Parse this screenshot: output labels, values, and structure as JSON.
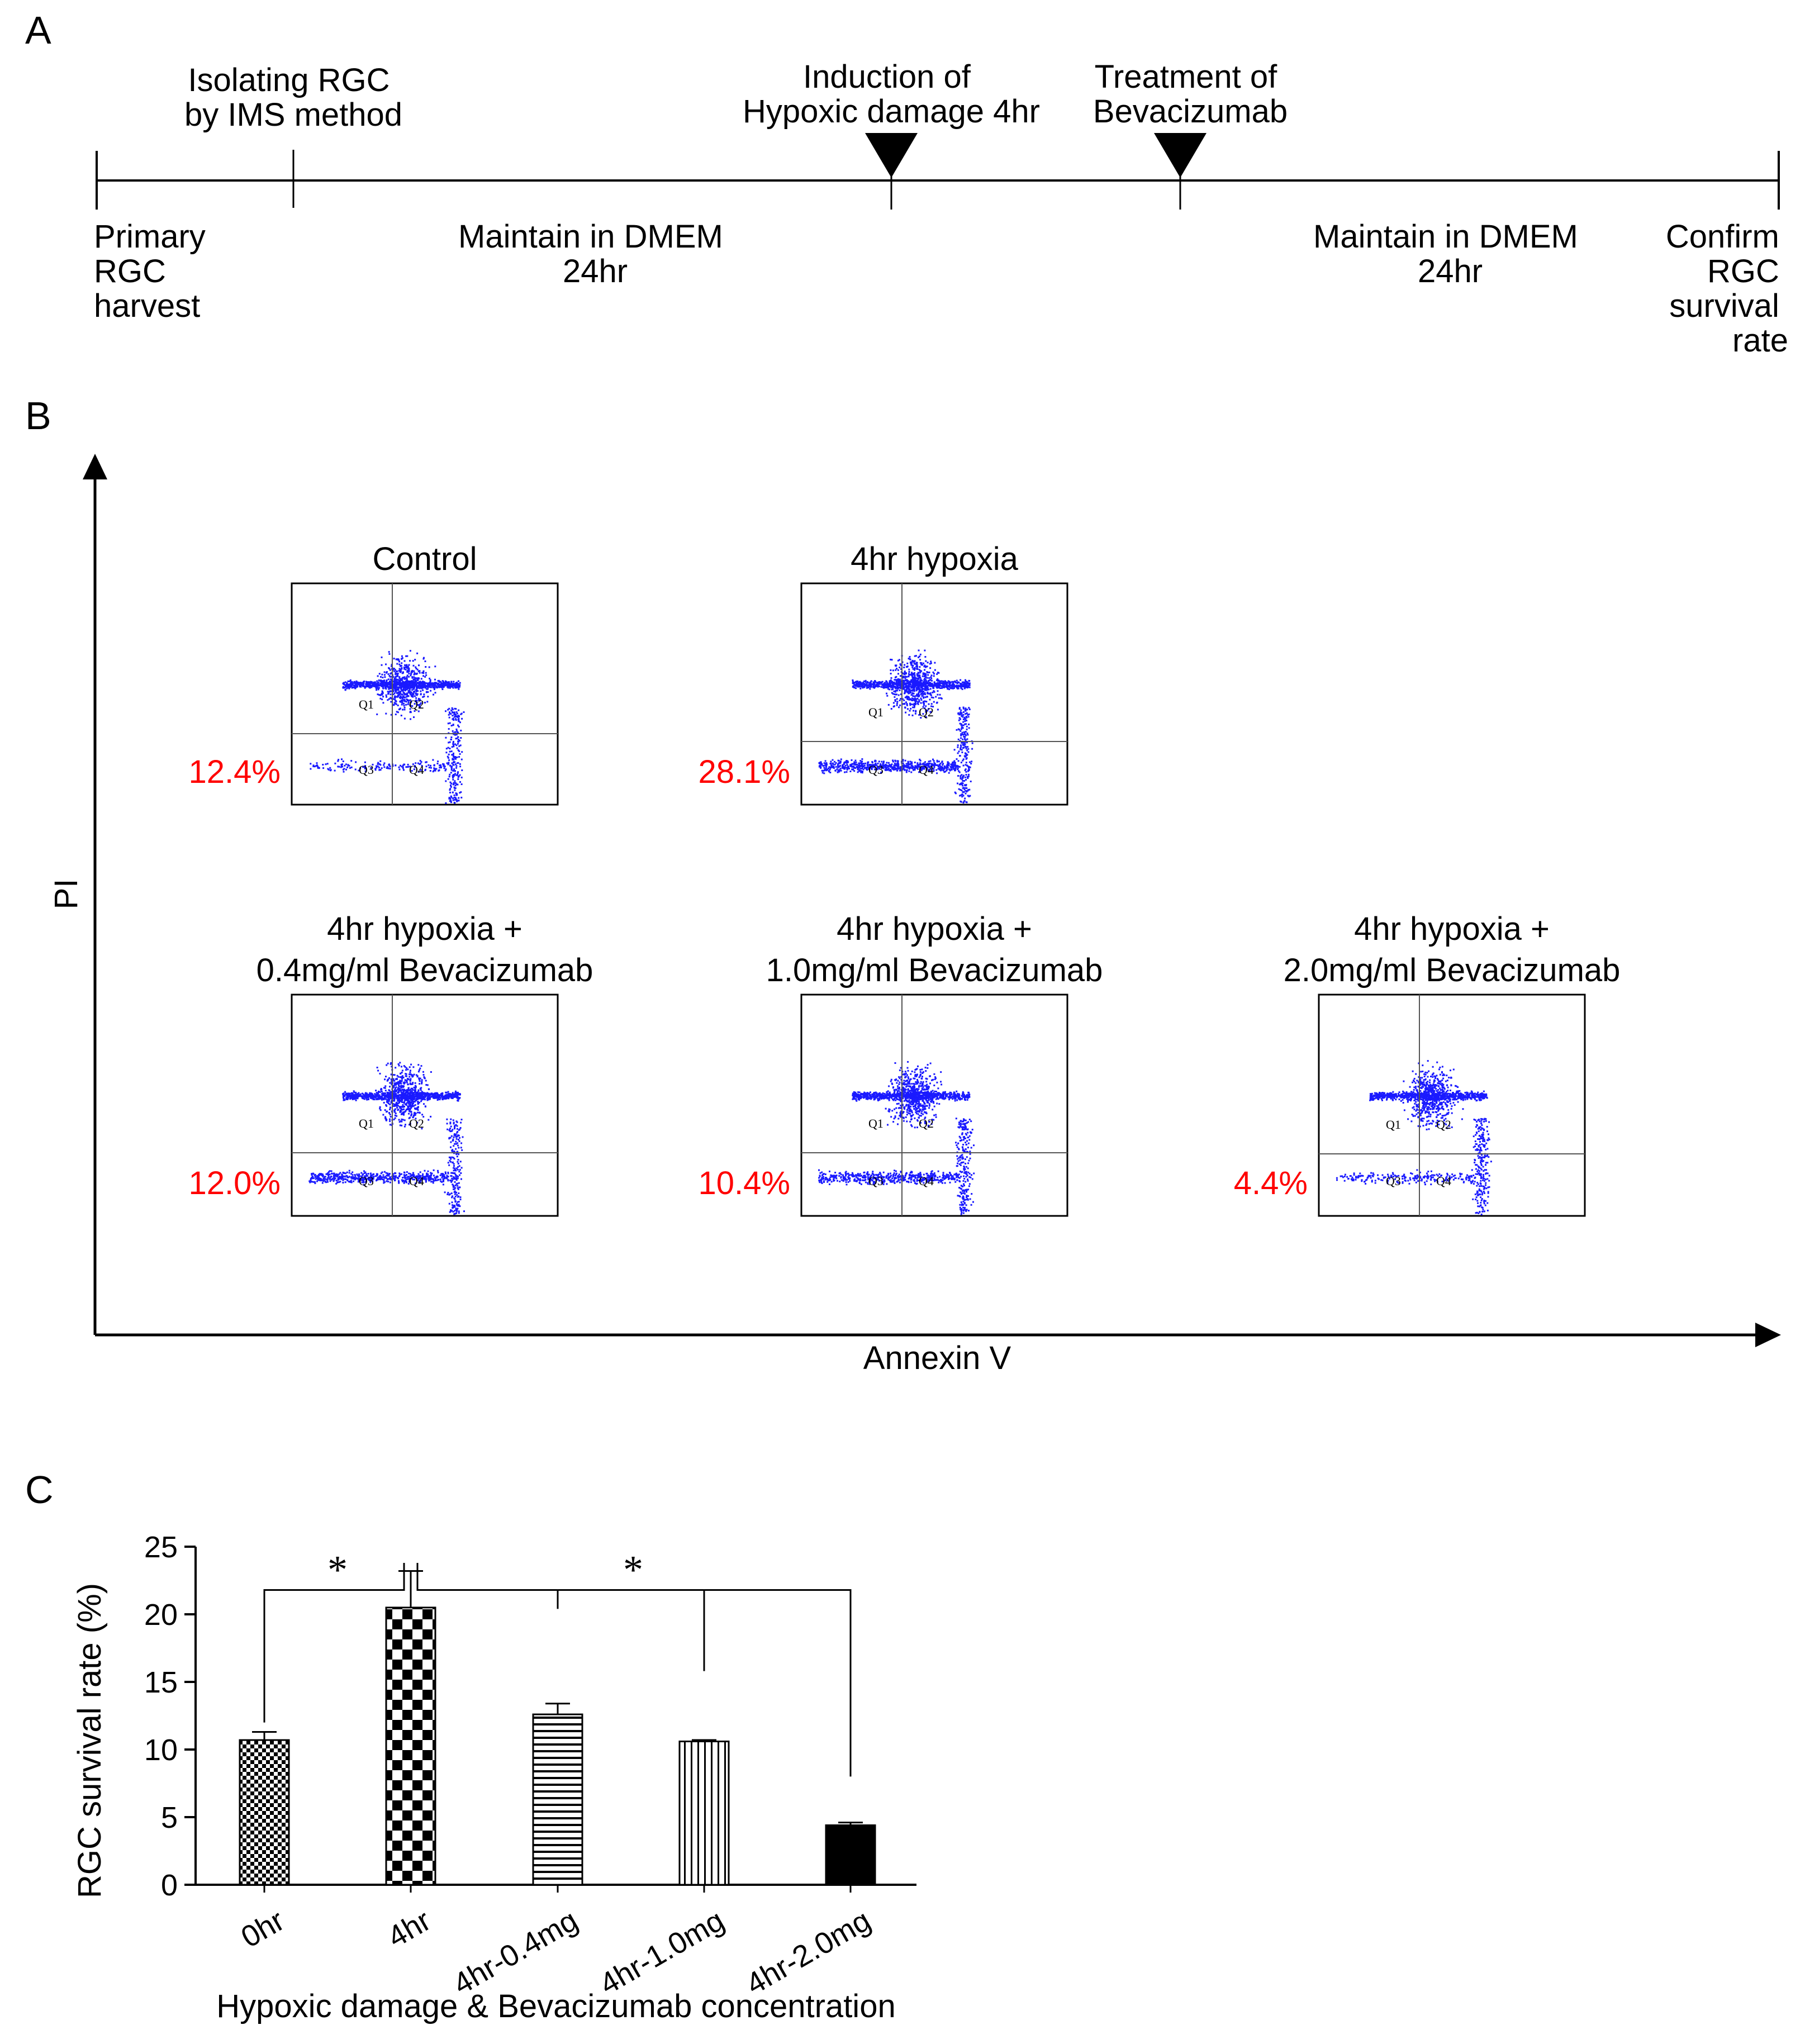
{
  "panel_a": {
    "letter": "A",
    "top_labels": [
      {
        "id": "isolating",
        "lines": [
          "Isolating RGC",
          "by IMS method"
        ]
      },
      {
        "id": "induction",
        "lines": [
          "Induction of",
          "Hypoxic damage 4hr"
        ]
      },
      {
        "id": "treatment",
        "lines": [
          "Treatment of",
          "Bevacizumab"
        ]
      }
    ],
    "bottom_labels": [
      {
        "id": "primary",
        "lines": [
          "Primary",
          "RGC",
          "harvest"
        ]
      },
      {
        "id": "maintain1",
        "lines": [
          "Maintain in DMEM",
          "24hr"
        ]
      },
      {
        "id": "maintain2",
        "lines": [
          "Maintain in DMEM",
          "24hr"
        ]
      },
      {
        "id": "confirm",
        "lines": [
          "Confirm",
          "RGC",
          "survival",
          "rate"
        ]
      }
    ]
  },
  "panel_b": {
    "letter": "B",
    "y_axis_label": "PI",
    "x_axis_label": "Annexin V",
    "plots": [
      {
        "title": [
          "Control"
        ],
        "percent": "12.4%",
        "quadrants": [
          "Q1",
          "Q2",
          "Q3",
          "Q4"
        ]
      },
      {
        "title": [
          "4hr hypoxia"
        ],
        "percent": "28.1%",
        "quadrants": [
          "Q1",
          "Q2",
          "Q3",
          "Q4"
        ]
      },
      {
        "title": [
          "4hr hypoxia +",
          "0.4mg/ml Bevacizumab"
        ],
        "percent": "12.0%",
        "quadrants": [
          "Q1",
          "Q2",
          "Q3",
          "Q4"
        ]
      },
      {
        "title": [
          "4hr hypoxia +",
          "1.0mg/ml Bevacizumab"
        ],
        "percent": "10.4%",
        "quadrants": [
          "Q1",
          "Q2",
          "Q3",
          "Q4"
        ]
      },
      {
        "title": [
          "4hr hypoxia +",
          "2.0mg/ml Bevacizumab"
        ],
        "percent": "4.4%",
        "quadrants": [
          "Q1",
          "Q2",
          "Q3",
          "Q4"
        ]
      }
    ]
  },
  "chart_data": {
    "type": "bar",
    "panel_letter": "C",
    "categories": [
      "0hr",
      "4hr",
      "4hr-0.4mg",
      "4hr-1.0mg",
      "4hr-2.0mg"
    ],
    "values": [
      10.7,
      20.5,
      12.6,
      10.6,
      4.4
    ],
    "errors": [
      0.6,
      2.7,
      0.8,
      0.1,
      0.2
    ],
    "fills": [
      "fine-checker",
      "large-checker",
      "horizontal-lines",
      "vertical-lines",
      "solid"
    ],
    "ylabel": "RGC survival rate (%)",
    "xlabel": "Hypoxic damage & Bevacizumab concentration",
    "ylim": [
      0,
      25
    ],
    "yticks": [
      0,
      5,
      10,
      15,
      20,
      25
    ],
    "significance": [
      {
        "from": "0hr",
        "to": "4hr",
        "label": "*"
      },
      {
        "from": "4hr",
        "to": [
          "4hr-0.4mg",
          "4hr-1.0mg",
          "4hr-2.0mg"
        ],
        "label": "*"
      }
    ]
  }
}
